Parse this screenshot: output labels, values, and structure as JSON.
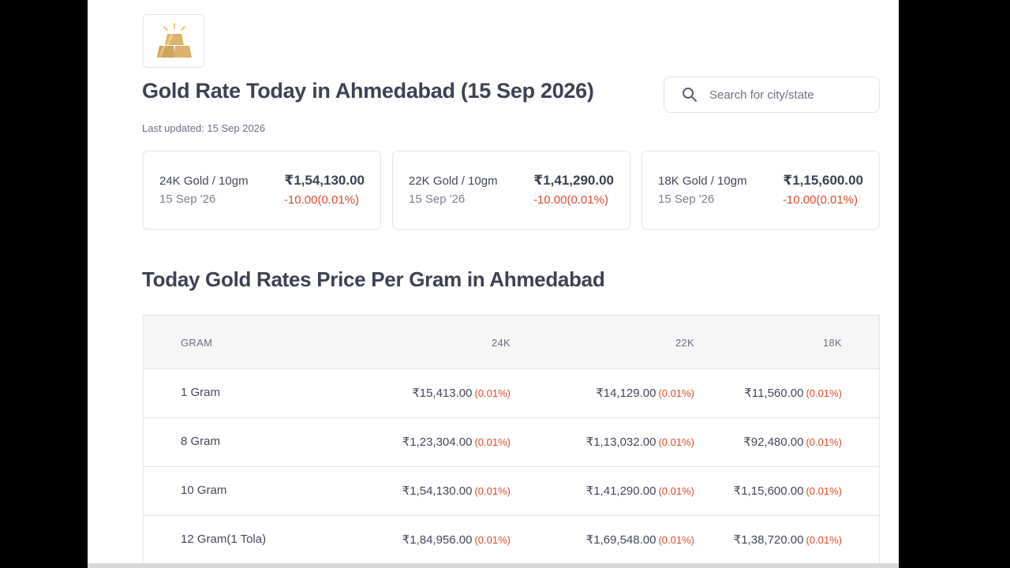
{
  "header": {
    "title": "Gold Rate Today in Ahmedabad (15 Sep 2026)",
    "last_updated": "Last updated: 15 Sep 2026"
  },
  "search": {
    "placeholder": "Search for city/state",
    "value": ""
  },
  "cards": [
    {
      "name": "24K Gold / 10gm",
      "date": "15 Sep '26",
      "price": "₹1,54,130.00",
      "change": "-10.00(0.01%)"
    },
    {
      "name": "22K Gold / 10gm",
      "date": "15 Sep '26",
      "price": "₹1,41,290.00",
      "change": "-10.00(0.01%)"
    },
    {
      "name": "18K Gold / 10gm",
      "date": "15 Sep '26",
      "price": "₹1,15,600.00",
      "change": "-10.00(0.01%)"
    }
  ],
  "rates": {
    "title": "Today Gold Rates Price Per Gram in Ahmedabad",
    "columns": [
      "GRAM",
      "24K",
      "22K",
      "18K"
    ],
    "rows": [
      {
        "gram": "1 Gram",
        "k24": "₹15,413.00",
        "k24_pct": "(0.01%)",
        "k22": "₹14,129.00",
        "k22_pct": "(0.01%)",
        "k18": "₹11,560.00",
        "k18_pct": "(0.01%)"
      },
      {
        "gram": "8 Gram",
        "k24": "₹1,23,304.00",
        "k24_pct": "(0.01%)",
        "k22": "₹1,13,032.00",
        "k22_pct": "(0.01%)",
        "k18": "₹92,480.00",
        "k18_pct": "(0.01%)"
      },
      {
        "gram": "10 Gram",
        "k24": "₹1,54,130.00",
        "k24_pct": "(0.01%)",
        "k22": "₹1,41,290.00",
        "k22_pct": "(0.01%)",
        "k18": "₹1,15,600.00",
        "k18_pct": "(0.01%)"
      },
      {
        "gram": "12 Gram(1 Tola)",
        "k24": "₹1,84,956.00",
        "k24_pct": "(0.01%)",
        "k22": "₹1,69,548.00",
        "k22_pct": "(0.01%)",
        "k18": "₹1,38,720.00",
        "k18_pct": "(0.01%)"
      }
    ]
  },
  "colors": {
    "accent_negative": "#e0492d",
    "gold": "#d9b46a"
  },
  "icons": {
    "logo": "gold-bars-icon",
    "search": "search-icon"
  }
}
